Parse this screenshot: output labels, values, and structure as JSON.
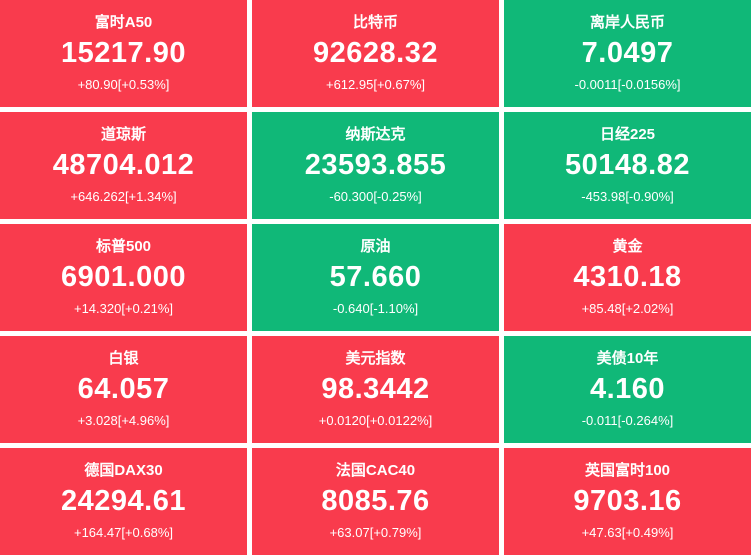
{
  "colors": {
    "up": "#f93b4d",
    "down": "#10b878",
    "text": "#ffffff",
    "page_background": "#ffffff"
  },
  "tiles": [
    {
      "name": "富时A50",
      "value": "15217.90",
      "change": "+80.90[+0.53%]",
      "trend": "up"
    },
    {
      "name": "比特币",
      "value": "92628.32",
      "change": "+612.95[+0.67%]",
      "trend": "up"
    },
    {
      "name": "离岸人民币",
      "value": "7.0497",
      "change": "-0.0011[-0.0156%]",
      "trend": "down"
    },
    {
      "name": "道琼斯",
      "value": "48704.012",
      "change": "+646.262[+1.34%]",
      "trend": "up"
    },
    {
      "name": "纳斯达克",
      "value": "23593.855",
      "change": "-60.300[-0.25%]",
      "trend": "down"
    },
    {
      "name": "日经225",
      "value": "50148.82",
      "change": "-453.98[-0.90%]",
      "trend": "down"
    },
    {
      "name": "标普500",
      "value": "6901.000",
      "change": "+14.320[+0.21%]",
      "trend": "up"
    },
    {
      "name": "原油",
      "value": "57.660",
      "change": "-0.640[-1.10%]",
      "trend": "down"
    },
    {
      "name": "黄金",
      "value": "4310.18",
      "change": "+85.48[+2.02%]",
      "trend": "up"
    },
    {
      "name": "白银",
      "value": "64.057",
      "change": "+3.028[+4.96%]",
      "trend": "up"
    },
    {
      "name": "美元指数",
      "value": "98.3442",
      "change": "+0.0120[+0.0122%]",
      "trend": "up"
    },
    {
      "name": "美债10年",
      "value": "4.160",
      "change": "-0.011[-0.264%]",
      "trend": "down"
    },
    {
      "name": "德国DAX30",
      "value": "24294.61",
      "change": "+164.47[+0.68%]",
      "trend": "up"
    },
    {
      "name": "法国CAC40",
      "value": "8085.76",
      "change": "+63.07[+0.79%]",
      "trend": "up"
    },
    {
      "name": "英国富时100",
      "value": "9703.16",
      "change": "+47.63[+0.49%]",
      "trend": "up"
    }
  ]
}
